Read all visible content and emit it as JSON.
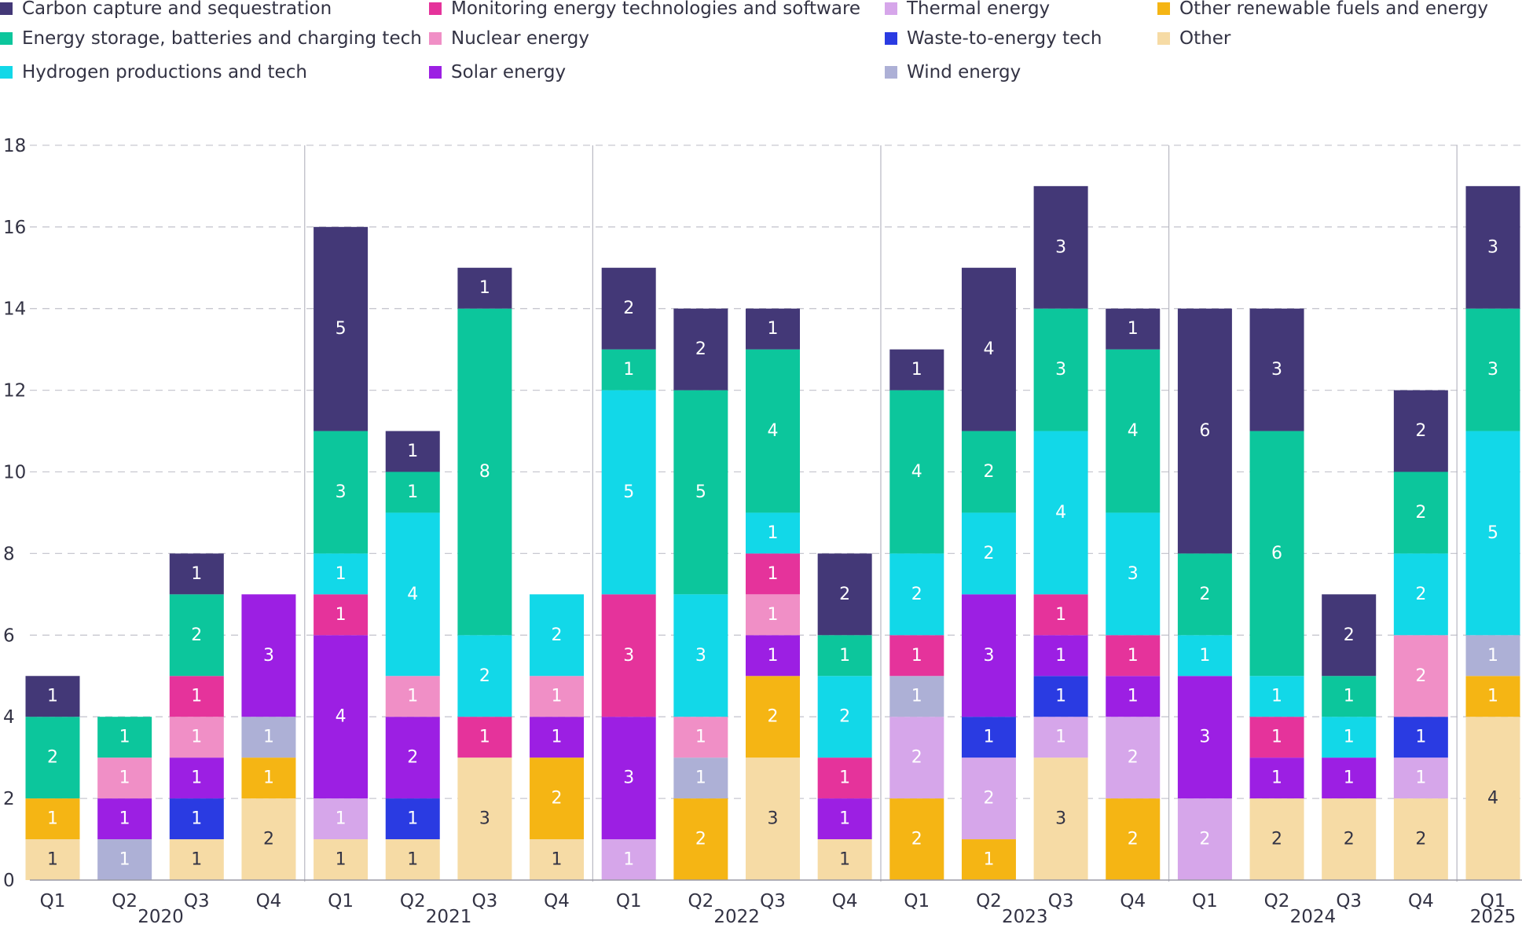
{
  "chart_data": {
    "type": "bar",
    "stacked": true,
    "title": "",
    "xlabel": "",
    "ylabel": "",
    "ylim": [
      0,
      18
    ],
    "yticks": [
      0,
      2,
      4,
      6,
      8,
      10,
      12,
      14,
      16,
      18
    ],
    "grid": "horizontal dashed",
    "legend_position": "top",
    "categories": [
      {
        "q": "Q1",
        "year": "2020"
      },
      {
        "q": "Q2",
        "year": "2020"
      },
      {
        "q": "Q3",
        "year": "2020"
      },
      {
        "q": "Q4",
        "year": "2020"
      },
      {
        "q": "Q1",
        "year": "2021"
      },
      {
        "q": "Q2",
        "year": "2021"
      },
      {
        "q": "Q3",
        "year": "2021"
      },
      {
        "q": "Q4",
        "year": "2021"
      },
      {
        "q": "Q1",
        "year": "2022"
      },
      {
        "q": "Q2",
        "year": "2022"
      },
      {
        "q": "Q3",
        "year": "2022"
      },
      {
        "q": "Q4",
        "year": "2022"
      },
      {
        "q": "Q1",
        "year": "2023"
      },
      {
        "q": "Q2",
        "year": "2023"
      },
      {
        "q": "Q3",
        "year": "2023"
      },
      {
        "q": "Q4",
        "year": "2023"
      },
      {
        "q": "Q1",
        "year": "2024"
      },
      {
        "q": "Q2",
        "year": "2024"
      },
      {
        "q": "Q3",
        "year": "2024"
      },
      {
        "q": "Q4",
        "year": "2024"
      },
      {
        "q": "Q1",
        "year": "2025"
      }
    ],
    "years": [
      "2020",
      "2021",
      "2022",
      "2023",
      "2024",
      "2025"
    ],
    "series": [
      {
        "name": "Other",
        "color": "#f6dba5",
        "label_color": "#333344",
        "values": [
          1,
          0,
          1,
          2,
          1,
          1,
          3,
          1,
          0,
          0,
          3,
          1,
          0,
          0,
          3,
          0,
          0,
          2,
          2,
          2,
          4
        ]
      },
      {
        "name": "Other renewable fuels and energy",
        "color": "#f5b514",
        "label_color": "#ffffff",
        "values": [
          1,
          0,
          0,
          1,
          0,
          0,
          0,
          2,
          0,
          2,
          2,
          0,
          2,
          1,
          0,
          2,
          0,
          0,
          0,
          0,
          1
        ]
      },
      {
        "name": "Thermal energy",
        "color": "#d6a6ea",
        "label_color": "#ffffff",
        "values": [
          0,
          0,
          0,
          0,
          1,
          0,
          0,
          0,
          1,
          0,
          0,
          0,
          2,
          2,
          1,
          2,
          2,
          0,
          0,
          1,
          0
        ]
      },
      {
        "name": "Waste-to-energy tech",
        "color": "#2a3be2",
        "label_color": "#ffffff",
        "values": [
          0,
          0,
          1,
          0,
          0,
          1,
          0,
          0,
          0,
          0,
          0,
          0,
          0,
          1,
          1,
          0,
          0,
          0,
          0,
          1,
          0
        ]
      },
      {
        "name": "Wind energy",
        "color": "#adb0d6",
        "label_color": "#ffffff",
        "values": [
          0,
          1,
          0,
          1,
          0,
          0,
          0,
          0,
          0,
          1,
          0,
          0,
          1,
          0,
          0,
          0,
          0,
          0,
          0,
          0,
          1
        ]
      },
      {
        "name": "Solar energy",
        "color": "#9c1fe3",
        "label_color": "#ffffff",
        "values": [
          0,
          1,
          1,
          3,
          4,
          2,
          0,
          1,
          3,
          0,
          1,
          1,
          0,
          3,
          1,
          1,
          3,
          1,
          1,
          0,
          0
        ]
      },
      {
        "name": "Nuclear energy",
        "color": "#f08fc6",
        "label_color": "#ffffff",
        "values": [
          0,
          1,
          1,
          0,
          0,
          1,
          0,
          1,
          0,
          1,
          1,
          0,
          0,
          0,
          0,
          0,
          0,
          0,
          0,
          2,
          0
        ]
      },
      {
        "name": "Monitoring energy technologies and software",
        "color": "#e5339b",
        "label_color": "#ffffff",
        "values": [
          0,
          0,
          1,
          0,
          1,
          0,
          1,
          0,
          3,
          0,
          1,
          1,
          1,
          0,
          1,
          1,
          0,
          1,
          0,
          0,
          0
        ]
      },
      {
        "name": "Hydrogen productions and tech",
        "color": "#12d8e8",
        "label_color": "#ffffff",
        "values": [
          0,
          0,
          0,
          0,
          1,
          4,
          2,
          2,
          5,
          3,
          1,
          2,
          2,
          2,
          4,
          3,
          1,
          1,
          1,
          2,
          5
        ]
      },
      {
        "name": "Energy storage, batteries and charging tech",
        "color": "#0cc69c",
        "label_color": "#ffffff",
        "values": [
          2,
          1,
          2,
          0,
          3,
          1,
          8,
          0,
          1,
          5,
          4,
          1,
          4,
          2,
          3,
          4,
          2,
          6,
          1,
          2,
          3
        ]
      },
      {
        "name": "Carbon capture and sequestration",
        "color": "#433877",
        "label_color": "#ffffff",
        "values": [
          1,
          0,
          1,
          0,
          5,
          1,
          1,
          0,
          2,
          2,
          1,
          2,
          1,
          4,
          3,
          1,
          6,
          3,
          2,
          2,
          3
        ]
      }
    ],
    "legend_order": [
      "Carbon capture and sequestration",
      "Energy storage, batteries and charging tech",
      "Hydrogen productions and tech",
      "Monitoring energy technologies and software",
      "Nuclear energy",
      "Solar energy",
      "Thermal energy",
      "Waste-to-energy tech",
      "Wind energy",
      "Other renewable fuels and energy",
      "Other"
    ]
  }
}
